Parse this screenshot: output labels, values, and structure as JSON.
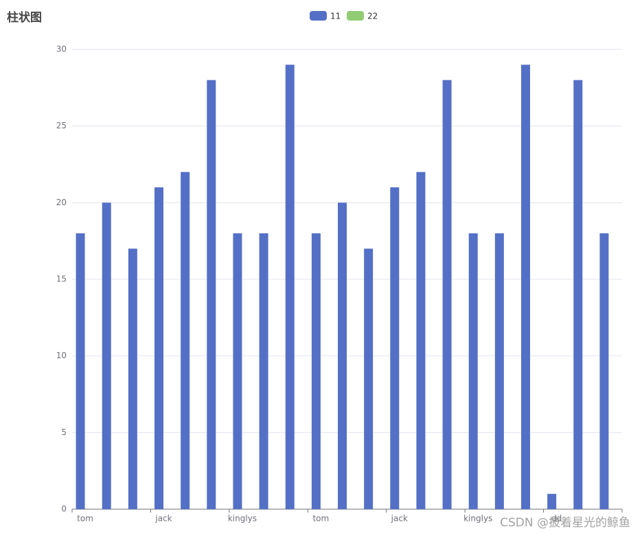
{
  "chart_data": {
    "type": "bar",
    "title": "柱状图",
    "categories": [
      "tom",
      null,
      null,
      "jack",
      null,
      null,
      "kinglys",
      null,
      null,
      "tom",
      null,
      null,
      "jack",
      null,
      null,
      "kinglys",
      null,
      null,
      "dd",
      null,
      null
    ],
    "series": [
      {
        "name": "11",
        "color": "#5470c6",
        "values": [
          18,
          20,
          17,
          21,
          22,
          28,
          18,
          18,
          29,
          18,
          20,
          17,
          21,
          22,
          28,
          18,
          18,
          29,
          1,
          28,
          18
        ]
      },
      {
        "name": "22",
        "color": "#91cc75",
        "values": [
          null,
          null,
          null,
          null,
          null,
          null,
          null,
          null,
          null,
          null,
          null,
          null,
          null,
          null,
          null,
          null,
          null,
          null,
          null,
          null,
          null
        ]
      }
    ],
    "ylim": [
      0,
      30
    ],
    "yticks": [
      0,
      5,
      10,
      15,
      20,
      25,
      30
    ],
    "grid": true,
    "legend": "top",
    "watermark": "CSDN @披着星光的鲸鱼"
  }
}
